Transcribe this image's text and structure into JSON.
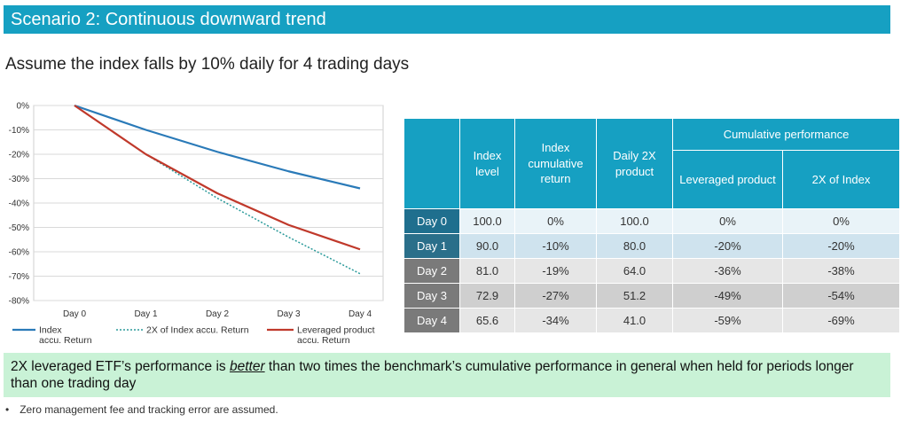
{
  "header": {
    "title": "Scenario 2: Continuous downward trend"
  },
  "subtitle": "Assume the index falls by 10% daily for 4 trading days",
  "chart_data": {
    "type": "line",
    "categories": [
      "Day 0",
      "Day 1",
      "Day 2",
      "Day 3",
      "Day 4"
    ],
    "y_ticks": [
      "0%",
      "-10%",
      "-20%",
      "-30%",
      "-40%",
      "-50%",
      "-60%",
      "-70%",
      "-80%"
    ],
    "ylim": [
      -80,
      0
    ],
    "grid": true,
    "legend_position": "bottom",
    "series": [
      {
        "name": "Index accu. Return",
        "values": [
          0,
          -10,
          -19,
          -27,
          -34
        ],
        "color": "#2a7ab8",
        "style": "solid"
      },
      {
        "name": "2X of Index accu. Return",
        "values": [
          0,
          -20,
          -38,
          -54,
          -69
        ],
        "color": "#2a9a9a",
        "style": "dotted"
      },
      {
        "name": "Leveraged product accu. Return",
        "values": [
          0,
          -20,
          -36,
          -49,
          -59
        ],
        "color": "#c0392b",
        "style": "solid"
      }
    ]
  },
  "table": {
    "headers": {
      "index_level": "Index level",
      "index_cumulative": "Index cumulative return",
      "daily_2x": "Daily 2X product",
      "cumulative_performance": "Cumulative performance",
      "leveraged_product": "Leveraged product",
      "two_x_index": "2X of Index"
    },
    "rows": [
      {
        "day": "Day 0",
        "index_level": "100.0",
        "index_cum": "0%",
        "daily_2x": "100.0",
        "lev": "0%",
        "two_x": "0%"
      },
      {
        "day": "Day 1",
        "index_level": "90.0",
        "index_cum": "-10%",
        "daily_2x": "80.0",
        "lev": "-20%",
        "two_x": "-20%"
      },
      {
        "day": "Day 2",
        "index_level": "81.0",
        "index_cum": "-19%",
        "daily_2x": "64.0",
        "lev": "-36%",
        "two_x": "-38%"
      },
      {
        "day": "Day 3",
        "index_level": "72.9",
        "index_cum": "-27%",
        "daily_2x": "51.2",
        "lev": "-49%",
        "two_x": "-54%"
      },
      {
        "day": "Day 4",
        "index_level": "65.6",
        "index_cum": "-34%",
        "daily_2x": "41.0",
        "lev": "-59%",
        "two_x": "-69%"
      }
    ]
  },
  "note": {
    "before": "2X leveraged ETF’s performance is ",
    "highlight": "better",
    "after": " than two times the benchmark’s cumulative performance in general when held for periods longer than one trading day"
  },
  "footnote": {
    "bullet": "•",
    "text": "Zero management fee and tracking error are assumed."
  }
}
